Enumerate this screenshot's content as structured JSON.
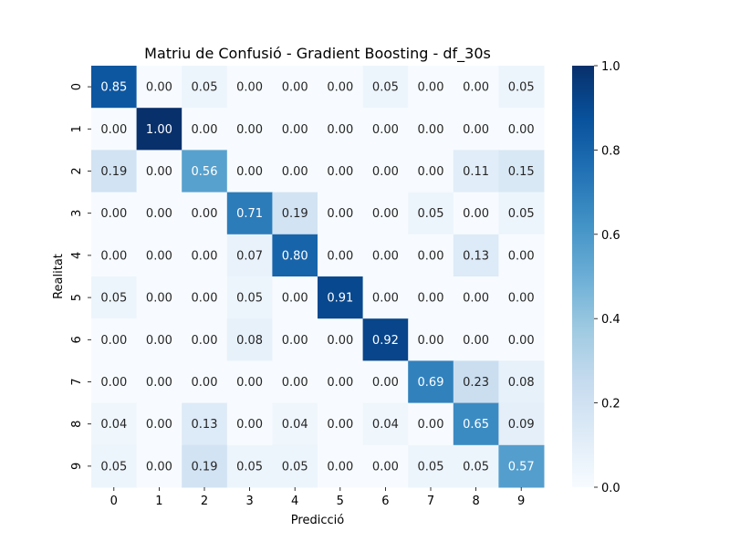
{
  "chart_data": {
    "type": "heatmap",
    "title": "Matriu de Confusió - Gradient Boosting - df_30s",
    "xlabel": "Predicció",
    "ylabel": "Realitat",
    "x_categories": [
      "0",
      "1",
      "2",
      "3",
      "4",
      "5",
      "6",
      "7",
      "8",
      "9"
    ],
    "y_categories": [
      "0",
      "1",
      "2",
      "3",
      "4",
      "5",
      "6",
      "7",
      "8",
      "9"
    ],
    "values": [
      [
        0.85,
        0.0,
        0.05,
        0.0,
        0.0,
        0.0,
        0.05,
        0.0,
        0.0,
        0.05
      ],
      [
        0.0,
        1.0,
        0.0,
        0.0,
        0.0,
        0.0,
        0.0,
        0.0,
        0.0,
        0.0
      ],
      [
        0.19,
        0.0,
        0.56,
        0.0,
        0.0,
        0.0,
        0.0,
        0.0,
        0.11,
        0.15
      ],
      [
        0.0,
        0.0,
        0.0,
        0.71,
        0.19,
        0.0,
        0.0,
        0.05,
        0.0,
        0.05
      ],
      [
        0.0,
        0.0,
        0.0,
        0.07,
        0.8,
        0.0,
        0.0,
        0.0,
        0.13,
        0.0
      ],
      [
        0.05,
        0.0,
        0.0,
        0.05,
        0.0,
        0.91,
        0.0,
        0.0,
        0.0,
        0.0
      ],
      [
        0.0,
        0.0,
        0.0,
        0.08,
        0.0,
        0.0,
        0.92,
        0.0,
        0.0,
        0.0
      ],
      [
        0.0,
        0.0,
        0.0,
        0.0,
        0.0,
        0.0,
        0.0,
        0.69,
        0.23,
        0.08
      ],
      [
        0.04,
        0.0,
        0.13,
        0.0,
        0.04,
        0.0,
        0.04,
        0.0,
        0.65,
        0.09
      ],
      [
        0.05,
        0.0,
        0.19,
        0.05,
        0.05,
        0.0,
        0.0,
        0.05,
        0.05,
        0.57
      ]
    ],
    "colorbar": {
      "range": [
        0.0,
        1.0
      ],
      "ticks": [
        "0.0",
        "0.2",
        "0.4",
        "0.6",
        "0.8",
        "1.0"
      ],
      "colormap": "Blues"
    }
  }
}
